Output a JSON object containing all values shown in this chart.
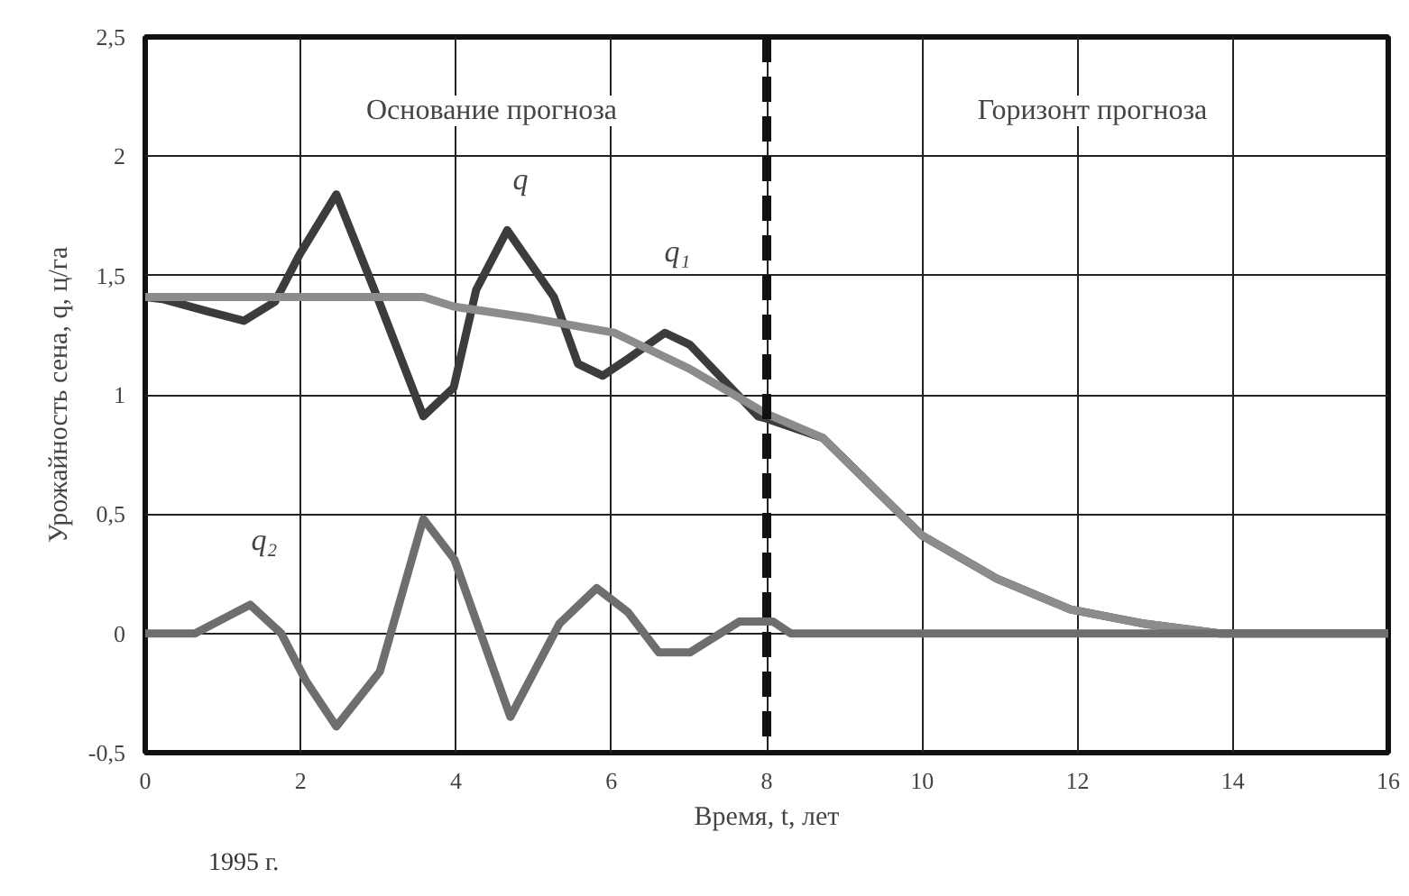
{
  "chart_data": {
    "type": "line",
    "xlabel": "Время, t, лет",
    "ylabel": "Урожайность сена, q, ц/га",
    "xlim": [
      0,
      16
    ],
    "ylim": [
      -0.5,
      2.5
    ],
    "xticks": [
      0,
      2,
      4,
      6,
      8,
      10,
      12,
      14,
      16
    ],
    "yticks": [
      {
        "value": -0.5,
        "label": "-0,5"
      },
      0,
      {
        "value": 0.5,
        "label": "0,5"
      },
      1,
      {
        "value": 1.5,
        "label": "1,5"
      },
      2,
      {
        "value": 2.5,
        "label": "2,5"
      }
    ],
    "grid": true,
    "marker": "none",
    "line_style": "solid",
    "series": [
      {
        "color": "#3c3c3c",
        "x": [
          0,
          0.24,
          0.8,
          1.27,
          1.67,
          1.99,
          2.46,
          3.01,
          3.58,
          3.97,
          4.26,
          4.66,
          5.26,
          5.57,
          5.89,
          6.21,
          6.69,
          7.01,
          7.89,
          8.0,
          8.72,
          10.0,
          10.96,
          11.91,
          12.87,
          13.83,
          16
        ],
        "values": [
          1.41,
          1.4,
          1.35,
          1.31,
          1.39,
          1.59,
          1.84,
          1.39,
          0.91,
          1.03,
          1.44,
          1.69,
          1.41,
          1.13,
          1.08,
          1.15,
          1.26,
          1.21,
          0.91,
          0.9,
          0.82,
          0.41,
          0.23,
          0.1,
          0.04,
          0,
          0
        ]
      },
      {
        "color": "#8c8c8c",
        "x": [
          0,
          3.58,
          3.97,
          5.0,
          6.04,
          7.0,
          8.0,
          8.72,
          10.0,
          10.96,
          11.91,
          12.87,
          13.83,
          16
        ],
        "values": [
          1.41,
          1.41,
          1.37,
          1.32,
          1.26,
          1.11,
          0.92,
          0.82,
          0.41,
          0.23,
          0.1,
          0.04,
          0,
          0
        ]
      },
      {
        "color": "#6e6e6e",
        "x": [
          0,
          0.64,
          1.35,
          1.75,
          2.07,
          2.46,
          3.02,
          3.58,
          3.98,
          4.7,
          5.33,
          5.81,
          6.21,
          6.61,
          7.01,
          7.65,
          8.08,
          8.31,
          9.2,
          16
        ],
        "values": [
          0,
          0,
          0.12,
          0,
          -0.2,
          -0.39,
          -0.16,
          0.48,
          0.31,
          -0.35,
          0.04,
          0.19,
          0.09,
          -0.08,
          -0.08,
          0.05,
          0.05,
          0,
          0,
          0
        ]
      }
    ],
    "ref_lines": [
      {
        "axis": "x",
        "value": 8,
        "color": "#111111",
        "line_style": "dashed"
      }
    ],
    "annotations": [
      "q",
      "q₁",
      "q₂",
      "Основание прогноза",
      "Горизонт прогноза",
      "1995 г."
    ]
  }
}
